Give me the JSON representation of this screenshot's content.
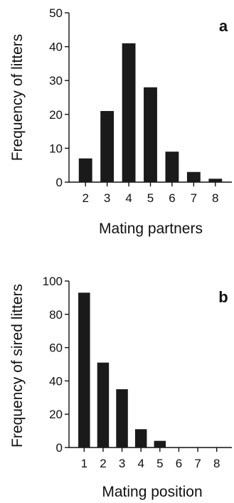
{
  "chart_data": [
    {
      "type": "bar",
      "panel_label": "a",
      "categories": [
        "2",
        "3",
        "4",
        "5",
        "6",
        "7",
        "8"
      ],
      "values": [
        7,
        21,
        41,
        28,
        9,
        3,
        1
      ],
      "xlabel": "Mating partners",
      "ylabel": "Frequency of litters",
      "ylim": [
        0,
        50
      ],
      "yticks": [
        "0",
        "10",
        "20",
        "30",
        "40",
        "50"
      ],
      "grid": false,
      "bar_color": "#1a1a1a"
    },
    {
      "type": "bar",
      "panel_label": "b",
      "categories": [
        "1",
        "2",
        "3",
        "4",
        "5",
        "6",
        "7",
        "8"
      ],
      "values": [
        93,
        51,
        35,
        11,
        4,
        0,
        0,
        0
      ],
      "xlabel": "Mating position",
      "ylabel": "Frequency of sired litters",
      "ylim": [
        0,
        100
      ],
      "yticks": [
        "0",
        "20",
        "40",
        "60",
        "80",
        "100"
      ],
      "grid": false,
      "bar_color": "#1a1a1a"
    }
  ]
}
